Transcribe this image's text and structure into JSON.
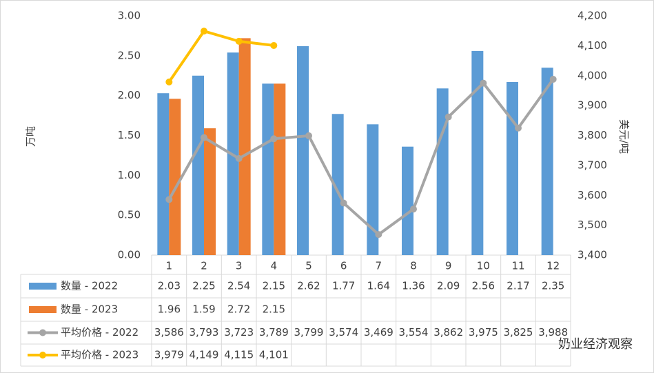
{
  "chart_data": {
    "type": "bar",
    "categories": [
      "1",
      "2",
      "3",
      "4",
      "5",
      "6",
      "7",
      "8",
      "9",
      "10",
      "11",
      "12"
    ],
    "y_label": "万吨",
    "y2_label": "美元/吨",
    "ylim": [
      0,
      3
    ],
    "yticks": [
      {
        "value": 0,
        "label": "0.00"
      },
      {
        "value": 0.5,
        "label": "0.50"
      },
      {
        "value": 1,
        "label": "1.00"
      },
      {
        "value": 1.5,
        "label": "1.50"
      },
      {
        "value": 2,
        "label": "2.00"
      },
      {
        "value": 2.5,
        "label": "2.50"
      },
      {
        "value": 3,
        "label": "3.00"
      }
    ],
    "y2lim": [
      3400,
      4200
    ],
    "y2ticks": [
      {
        "value": 3400,
        "label": "3,400"
      },
      {
        "value": 3500,
        "label": "3,500"
      },
      {
        "value": 3600,
        "label": "3,600"
      },
      {
        "value": 3700,
        "label": "3,700"
      },
      {
        "value": 3800,
        "label": "3,800"
      },
      {
        "value": 3900,
        "label": "3,900"
      },
      {
        "value": 4000,
        "label": "4,000"
      },
      {
        "value": 4100,
        "label": "4,100"
      },
      {
        "value": 4200,
        "label": "4,200"
      }
    ],
    "grid": false,
    "series": [
      {
        "name": "数量 - 2022",
        "type": "bar",
        "color": "#5b9bd5",
        "values": [
          2.03,
          2.25,
          2.54,
          2.15,
          2.62,
          1.77,
          1.64,
          1.36,
          2.09,
          2.56,
          2.17,
          2.35
        ]
      },
      {
        "name": "数量 - 2023",
        "type": "bar",
        "color": "#ed7d31",
        "values": [
          1.96,
          1.59,
          2.72,
          2.15,
          null,
          null,
          null,
          null,
          null,
          null,
          null,
          null
        ]
      },
      {
        "name": "平均价格 - 2022",
        "type": "line",
        "axis": "y2",
        "color": "#a5a5a5",
        "values": [
          3586,
          3793,
          3723,
          3789,
          3799,
          3574,
          3469,
          3554,
          3862,
          3975,
          3825,
          3988
        ],
        "value_labels": [
          "3,586",
          "3,793",
          "3,723",
          "3,789",
          "3,799",
          "3,574",
          "3,469",
          "3,554",
          "3,862",
          "3,975",
          "3,825",
          "3,988"
        ]
      },
      {
        "name": "平均价格 - 2023",
        "type": "line",
        "axis": "y2",
        "color": "#ffc000",
        "values": [
          3979,
          4149,
          4115,
          4101,
          null,
          null,
          null,
          null,
          null,
          null,
          null,
          null
        ],
        "value_labels": [
          "3,979",
          "4,149",
          "4,115",
          "4,101",
          null,
          null,
          null,
          null,
          null,
          null,
          null,
          null
        ]
      }
    ],
    "watermark": "奶业经济观察"
  }
}
